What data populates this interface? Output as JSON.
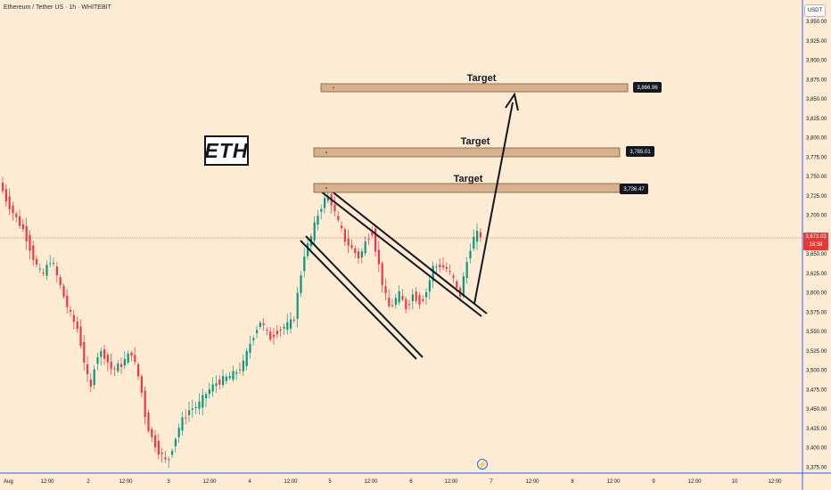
{
  "title": "Ethereum / Tether US · 1h · WHITEBIT",
  "currency": "USDT",
  "annotation_label": "ETH",
  "current_price": "3,673.03",
  "countdown": "18:38",
  "price_axis": [
    "3,950.00",
    "3,925.00",
    "3,900.00",
    "3,875.00",
    "3,850.00",
    "3,825.00",
    "3,800.00",
    "3,775.00",
    "3,750.00",
    "3,725.00",
    "3,700.00",
    "3,675.00",
    "3,650.00",
    "3,625.00",
    "3,600.00",
    "3,575.00",
    "3,550.00",
    "3,525.00",
    "3,500.00",
    "3,475.00",
    "3,450.00",
    "3,425.00",
    "3,400.00",
    "3,375.00"
  ],
  "time_axis": [
    "Aug",
    "12:00",
    "2",
    "12:00",
    "3",
    "12:00",
    "4",
    "12:00",
    "5",
    "12:00",
    "6",
    "12:00",
    "7",
    "12:00",
    "8",
    "12:00",
    "9",
    "12:00",
    "10",
    "12:00"
  ],
  "targets": [
    {
      "label": "Target",
      "price": "3,866.96"
    },
    {
      "label": "Target",
      "price": "3,785.01"
    },
    {
      "label": "Target",
      "price": "3,736.47"
    }
  ],
  "colors": {
    "background": "#fdebd3",
    "up": "#089981",
    "down": "#f23645",
    "target_zone": "#d9b08c",
    "price_line": "#e53935",
    "axis_border": "#2962ff"
  },
  "icons": {
    "replay": "lightning-icon"
  }
}
